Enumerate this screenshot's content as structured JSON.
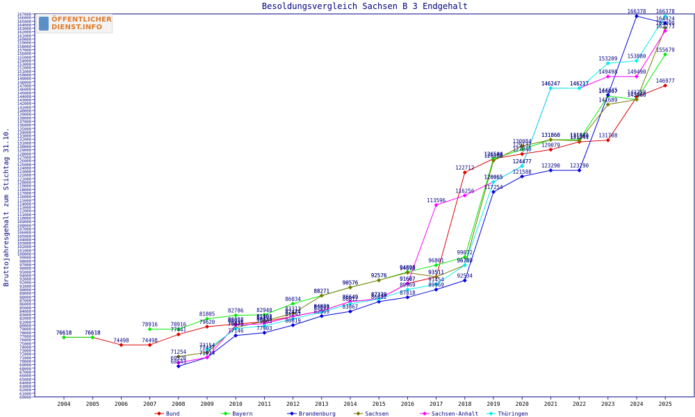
{
  "logo": {
    "line1": "ÖFFENTLICHER",
    "line2": "DIENST.INFO"
  },
  "chart_data": {
    "type": "line",
    "title": "Besoldungsvergleich Sachsen B 3 Endgehalt",
    "xlabel": "",
    "ylabel": "Bruttojahresgehalt zum Stichtag 31.10.",
    "ylim": [
      60000,
      167000
    ],
    "ytick_step": 1000,
    "categories": [
      "2004",
      "2005",
      "2006",
      "2007",
      "2008",
      "2009",
      "2010",
      "2011",
      "2012",
      "2013",
      "2014",
      "2015",
      "2016",
      "2017",
      "2018",
      "2019",
      "2020",
      "2021",
      "2022",
      "2023",
      "2024",
      "2025"
    ],
    "series": [
      {
        "name": "Bund",
        "color": "#dd0000",
        "values": [
          76618,
          76618,
          74498,
          74498,
          77441,
          79620,
          80322,
          81001,
          82474,
          84020,
          86649,
          87330,
          91667,
          93511,
          122712,
          126540,
          127848,
          129079,
          131241,
          131708,
          143758,
          146977
        ]
      },
      {
        "name": "Bayern",
        "color": "#00ee00",
        "values": [
          76618,
          76618,
          null,
          78916,
          78916,
          81805,
          82786,
          82940,
          86034,
          88271,
          90576,
          92576,
          94898,
          96801,
          99072,
          126504,
          129132,
          131860,
          131841,
          144067,
          143066,
          155679
        ]
      },
      {
        "name": "Brandenburg",
        "color": "#0000dd",
        "values": [
          null,
          null,
          null,
          null,
          68543,
          71014,
          77146,
          77903,
          80019,
          82569,
          83867,
          86612,
          87818,
          89969,
          92534,
          117254,
          121588,
          123290,
          123290,
          144345,
          166378,
          164424
        ]
      },
      {
        "name": "Sachsen",
        "color": "#777700",
        "values": [
          null,
          null,
          null,
          null,
          71254,
          72437,
          79335,
          81193,
          83313,
          88271,
          90576,
          92576,
          94699,
          93511,
          96780,
          126006,
          130084,
          131860,
          131560,
          141689,
          143066,
          163099
        ]
      },
      {
        "name": "Sachsen-Anhalt",
        "color": "#ff00ff",
        "values": [
          null,
          null,
          null,
          null,
          69520,
          71014,
          80056,
          80455,
          82474,
          84020,
          86649,
          87330,
          91677,
          113596,
          116256,
          120065,
          124477,
          146247,
          146217,
          149498,
          149490,
          162273
        ]
      },
      {
        "name": "Thüringen",
        "color": "#00eeee",
        "values": [
          null,
          null,
          null,
          null,
          null,
          73154,
          79075,
          79803,
          81797,
          83697,
          86012,
          87329,
          89969,
          91454,
          96787,
          120065,
          124477,
          146247,
          146217,
          153209,
          153880,
          166378
        ]
      }
    ]
  }
}
